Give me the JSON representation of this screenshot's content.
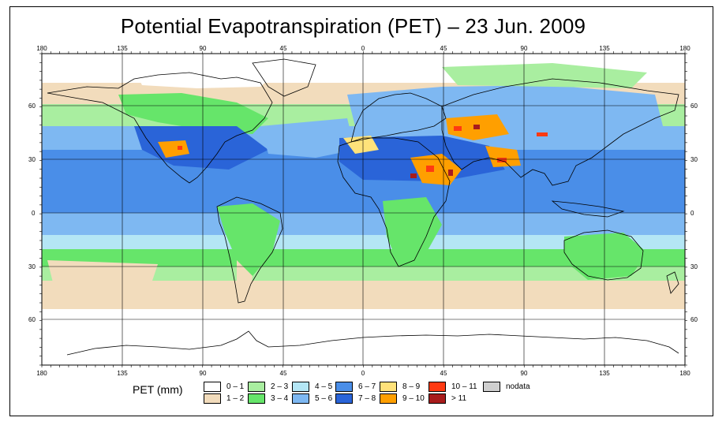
{
  "title": "Potential Evapotranspiration (PET) – 23 Jun. 2009",
  "axes": {
    "lon_ticks_top": [
      "180",
      "135",
      "90",
      "45",
      "0",
      "45",
      "90",
      "135",
      "180"
    ],
    "lon_ticks_bottom": [
      "180",
      "135",
      "90",
      "45",
      "0",
      "45",
      "90",
      "135",
      "180"
    ],
    "lat_ticks_left": [
      "60",
      "30",
      "0",
      "30",
      "60"
    ],
    "lat_ticks_right": [
      "60",
      "30",
      "0",
      "30",
      "60"
    ]
  },
  "legend": {
    "title": "PET (mm)",
    "items": [
      {
        "label": "0 – 1",
        "color": "#ffffff"
      },
      {
        "label": "1 – 2",
        "color": "#f2dcbc"
      },
      {
        "label": "2 – 3",
        "color": "#a9eea0"
      },
      {
        "label": "3 – 4",
        "color": "#66e56a"
      },
      {
        "label": "4 – 5",
        "color": "#b4e6f5"
      },
      {
        "label": "5 – 6",
        "color": "#7eb8f2"
      },
      {
        "label": "6 – 7",
        "color": "#4a8ee8"
      },
      {
        "label": "7 – 8",
        "color": "#2a64d8"
      },
      {
        "label": "8 – 9",
        "color": "#ffe27a"
      },
      {
        "label": "9 – 10",
        "color": "#ff9f00"
      },
      {
        "label": "10 – 11",
        "color": "#ff3a12"
      },
      {
        "label": "> 11",
        "color": "#a81c1c"
      },
      {
        "label": "nodata",
        "color": "#cfcfcf"
      }
    ]
  }
}
